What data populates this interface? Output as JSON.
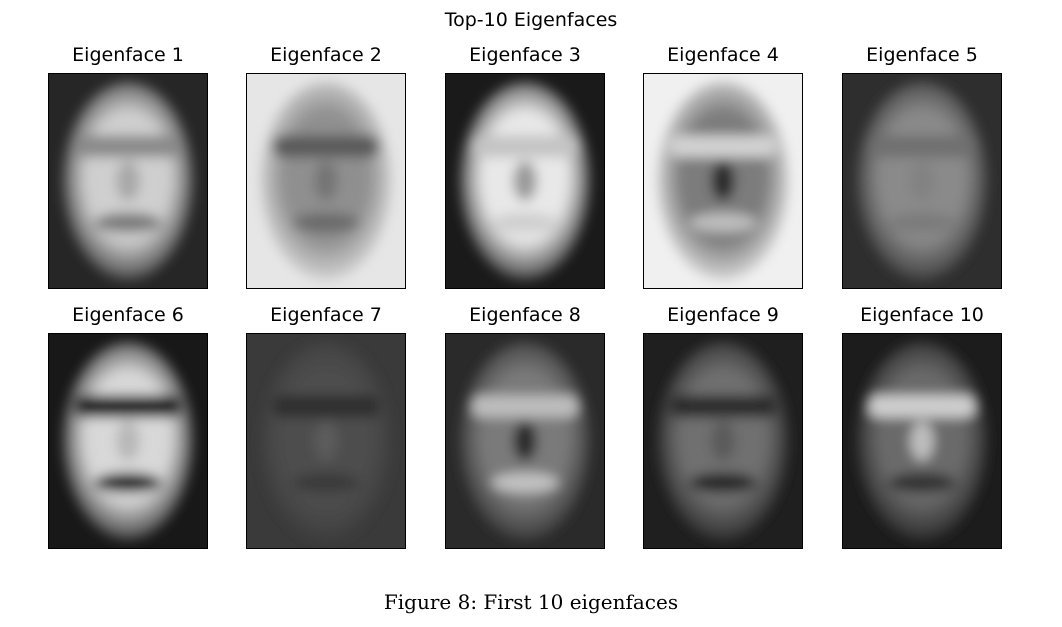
{
  "figure": {
    "suptitle": "Top-10 Eigenfaces",
    "caption": "Figure 8: First 10 eigenfaces"
  },
  "eigenfaces": [
    {
      "title": "Eigenface 1",
      "bg": "#262626",
      "face": "#cfcfcf",
      "eyes": "#8a8a8a",
      "mouth": "#7a7a7a",
      "nose": "#a8a8a8"
    },
    {
      "title": "Eigenface 2",
      "bg": "#e6e6e6",
      "face": "#8f8f8f",
      "eyes": "#5a5a5a",
      "mouth": "#6b6b6b",
      "nose": "#747474"
    },
    {
      "title": "Eigenface 3",
      "bg": "#1a1a1a",
      "face": "#e8e8e8",
      "eyes": "#c4c4c4",
      "mouth": "#cfcfcf",
      "nose": "#9a9a9a"
    },
    {
      "title": "Eigenface 4",
      "bg": "#f0f0f0",
      "face": "#7c7c7c",
      "eyes": "#d2d2d2",
      "mouth": "#bdbdbd",
      "nose": "#2a2a2a"
    },
    {
      "title": "Eigenface 5",
      "bg": "#2e2e2e",
      "face": "#8a8a8a",
      "eyes": "#6f6f6f",
      "mouth": "#7a7a7a",
      "nose": "#828282"
    },
    {
      "title": "Eigenface 6",
      "bg": "#181818",
      "face": "#d8d8d8",
      "eyes": "#1e1e1e",
      "mouth": "#1c1c1c",
      "nose": "#b8b8b8"
    },
    {
      "title": "Eigenface 7",
      "bg": "#3a3a3a",
      "face": "#4e4e4e",
      "eyes": "#2f2f2f",
      "mouth": "#3a3a3a",
      "nose": "#5c5c5c"
    },
    {
      "title": "Eigenface 8",
      "bg": "#2a2a2a",
      "face": "#7a7a7a",
      "eyes": "#bdbdbd",
      "mouth": "#c2c2c2",
      "nose": "#2c2c2c"
    },
    {
      "title": "Eigenface 9",
      "bg": "#1f1f1f",
      "face": "#707070",
      "eyes": "#2a2a2a",
      "mouth": "#262626",
      "nose": "#5a5a5a"
    },
    {
      "title": "Eigenface 10",
      "bg": "#1c1c1c",
      "face": "#6a6a6a",
      "eyes": "#cfcfcf",
      "mouth": "#303030",
      "nose": "#bebebe"
    }
  ]
}
